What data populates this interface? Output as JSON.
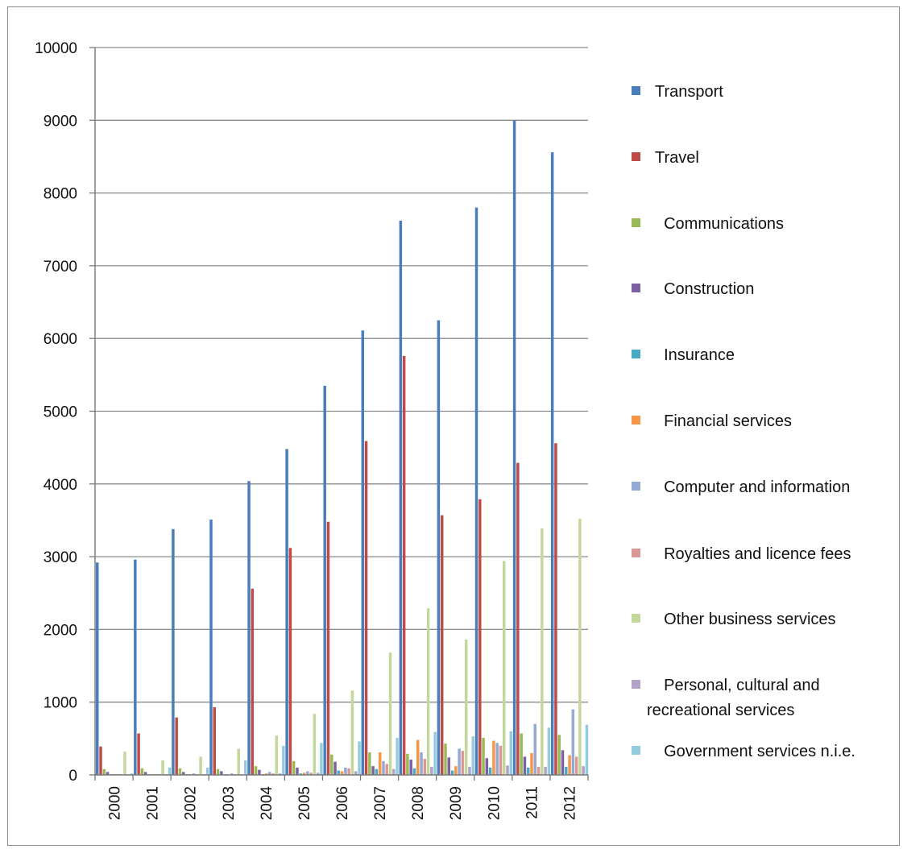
{
  "chart_data": {
    "type": "bar",
    "title": "",
    "xlabel": "",
    "ylabel": "",
    "ylim": [
      0,
      10000
    ],
    "yticks": [
      0,
      1000,
      2000,
      3000,
      4000,
      5000,
      6000,
      7000,
      8000,
      9000,
      10000
    ],
    "grid": true,
    "legend_position": "right",
    "categories": [
      "2000",
      "2001",
      "2002",
      "2003",
      "2004",
      "2005",
      "2006",
      "2007",
      "2008",
      "2009",
      "2010",
      "2011",
      "2012"
    ],
    "series": [
      {
        "name": "Transport",
        "legend_label": "Transport",
        "color": "#4a7ebb",
        "values": [
          2920,
          2960,
          3380,
          3510,
          4040,
          4480,
          5350,
          6110,
          7620,
          6250,
          7800,
          9000,
          8560
        ]
      },
      {
        "name": "Travel",
        "legend_label": "Travel",
        "color": "#be4b48",
        "values": [
          390,
          570,
          790,
          930,
          2560,
          3120,
          3480,
          4590,
          5760,
          3570,
          3790,
          4290,
          4560
        ]
      },
      {
        "name": "Communications",
        "legend_label": "  Communications",
        "color": "#98b954",
        "values": [
          80,
          90,
          90,
          80,
          120,
          190,
          280,
          310,
          290,
          430,
          510,
          570,
          550
        ]
      },
      {
        "name": "Construction",
        "legend_label": "  Construction",
        "color": "#7d60a0",
        "values": [
          40,
          40,
          40,
          50,
          70,
          100,
          180,
          120,
          210,
          240,
          230,
          250,
          340
        ]
      },
      {
        "name": "Insurance",
        "legend_label": "  Insurance",
        "color": "#46aac5",
        "values": [
          10,
          10,
          10,
          10,
          10,
          20,
          60,
          80,
          90,
          60,
          100,
          100,
          110
        ]
      },
      {
        "name": "Financial services",
        "legend_label": "  Financial services",
        "color": "#f79646",
        "values": [
          10,
          10,
          10,
          10,
          20,
          30,
          50,
          310,
          480,
          120,
          470,
          300,
          270
        ]
      },
      {
        "name": "Computer and information",
        "legend_label": "  Computer and information",
        "color": "#94a9d3",
        "values": [
          10,
          10,
          20,
          20,
          40,
          50,
          100,
          190,
          310,
          360,
          440,
          700,
          900
        ]
      },
      {
        "name": "Royalties and licence fees",
        "legend_label": "  Royalties and licence fees",
        "color": "#d99795",
        "values": [
          10,
          10,
          10,
          10,
          20,
          30,
          90,
          150,
          220,
          330,
          400,
          110,
          250
        ]
      },
      {
        "name": "Other business services",
        "legend_label": "  Other business services",
        "color": "#c3d69b",
        "values": [
          320,
          200,
          250,
          360,
          540,
          840,
          1160,
          1680,
          2290,
          1860,
          2940,
          3390,
          3520
        ]
      },
      {
        "name": "Personal, cultural and recreational services",
        "legend_label": "  Personal, cultural and",
        "legend_label_2": "recreational services",
        "color": "#b2a2c7",
        "values": [
          10,
          10,
          10,
          10,
          20,
          30,
          50,
          80,
          110,
          110,
          130,
          110,
          120
        ]
      },
      {
        "name": "Government services n.i.e.",
        "legend_label": "  Government services n.i.e.",
        "color": "#93cddd",
        "values": [
          20,
          100,
          100,
          200,
          400,
          440,
          460,
          510,
          590,
          530,
          600,
          650,
          690
        ]
      }
    ]
  }
}
